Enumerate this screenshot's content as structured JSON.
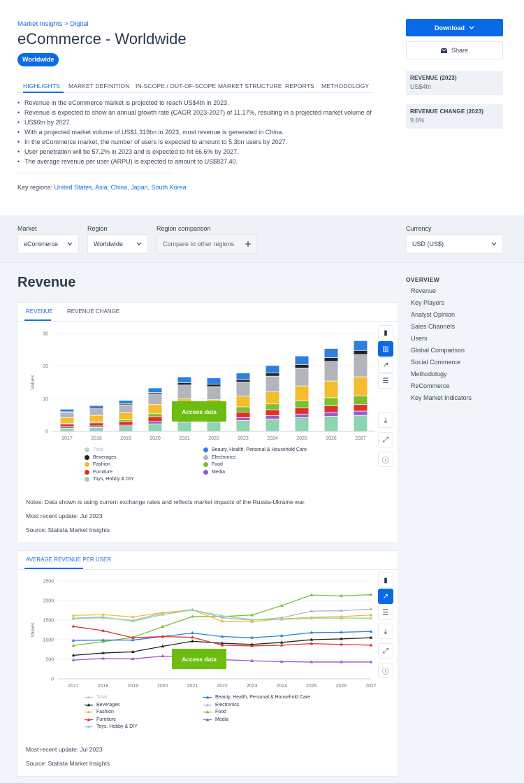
{
  "header": {
    "breadcrumb": "Market Insights > Digital",
    "title": "eCommerce - Worldwide",
    "region_pill": "Worldwide",
    "tabs": [
      "HIGHLIGHTS",
      "MARKET DEFINITION",
      "IN-SCOPE / OUT-OF-SCOPE",
      "MARKET STRUCTURE",
      "REPORTS",
      "METHODOLOGY"
    ],
    "highlights": [
      "Revenue in the eCommerce market is projected to reach US$4tn in 2023.",
      "Revenue is expected to show an annual growth rate (CAGR 2023-2027) of 11.17%, resulting in a projected market volume of",
      "US$6tn by 2027.",
      "With a projected market volume of US$1,319bn in 2023, most revenue is generated in China.",
      "In the eCommerce market, the number of users is expected to amount to 5.3bn users by 2027.",
      "User penetration will be 57.2% in 2023 and is expected to hit 66.6% by 2027.",
      "The average revenue per user (ARPU) is expected to amount to US$827.40."
    ],
    "key_regions_label": "Key regions:",
    "key_regions": "United States, Asia, China, Japan, South Korea"
  },
  "sidebar": {
    "download_label": "Download",
    "share_label": "Share",
    "kpis": [
      {
        "label": "REVENUE (2023)",
        "value": "US$4tn"
      },
      {
        "label": "REVENUE CHANGE (2023)",
        "value": "9.6%"
      }
    ]
  },
  "filters": {
    "market_label": "Market",
    "market_value": "eCommerce",
    "region_label": "Region",
    "region_value": "Worldwide",
    "comparison_label": "Region comparison",
    "comparison_value": "Compare to other regions",
    "currency_label": "Currency",
    "currency_value": "USD (US$)"
  },
  "section": {
    "title": "Revenue"
  },
  "overview": {
    "title": "OVERVIEW",
    "items": [
      "Revenue",
      "Key Players",
      "Analyst Opinion",
      "Sales Channels",
      "Users",
      "Global Comparison",
      "Social Commerce",
      "Methodology",
      "ReCommerce",
      "Key Market Indicators"
    ]
  },
  "revenue_card": {
    "tabs": [
      "REVENUE",
      "REVENUE CHANGE"
    ],
    "access_label": "Access data",
    "notes": "Notes: Data shown is using current exchange rates and reflects market impacts of the Russia-Ukraine war.",
    "update": "Most recent update: Jul 2023",
    "source": "Source: Statista Market Insights"
  },
  "arpu_card": {
    "tab": "AVERAGE REVENUE PER USER",
    "access_label": "Access data",
    "update": "Most recent update: Jul 2023",
    "source": "Source: Statista Market Insights"
  },
  "icons": {
    "download_btn": "chevron-down-icon",
    "share_btn": "envelope-icon",
    "toolbar": [
      "bar-chart-icon",
      "stacked-bar-icon",
      "line-chart-icon",
      "table-icon",
      "download-icon",
      "expand-icon",
      "info-icon"
    ]
  },
  "colors": {
    "accent": "#0a6ae6",
    "access": "#6cbd10",
    "series": {
      "Total": "#c8ccd2",
      "Beauty, Health, Personal & Household Care": "#2f7fe0",
      "Beverages": "#222222",
      "Electronics": "#b2b6bc",
      "Fashion": "#f6bc2e",
      "Food": "#7cbf32",
      "Furniture": "#e0302a",
      "Media": "#9b59d0",
      "Toys, Hobby & DIY": "#8fd4b0"
    }
  },
  "chart_data": [
    {
      "type": "bar",
      "stacked": true,
      "ylabel": "Values",
      "ylim": [
        0,
        30
      ],
      "yticks": [
        0,
        10,
        20,
        30
      ],
      "categories": [
        "2017",
        "2018",
        "2019",
        "2020",
        "2021",
        "2022",
        "2023",
        "2024",
        "2025",
        "2026",
        "2027"
      ],
      "legend_placement": "bottom",
      "series": [
        {
          "name": "Toys, Hobby & DIY",
          "values": [
            1.0,
            1.2,
            1.4,
            2.3,
            2.8,
            2.8,
            3.3,
            3.8,
            4.2,
            4.6,
            4.9
          ]
        },
        {
          "name": "Media",
          "values": [
            0.4,
            0.5,
            0.5,
            0.7,
            0.8,
            0.8,
            0.9,
            1.0,
            1.1,
            1.2,
            1.3
          ]
        },
        {
          "name": "Furniture",
          "values": [
            0.8,
            0.9,
            1.0,
            1.5,
            1.6,
            1.6,
            1.7,
            1.8,
            1.9,
            2.0,
            2.0
          ]
        },
        {
          "name": "Food",
          "values": [
            0.3,
            0.4,
            0.6,
            0.9,
            1.4,
            1.5,
            1.6,
            1.8,
            2.2,
            2.5,
            2.7
          ]
        },
        {
          "name": "Fashion",
          "values": [
            1.7,
            1.9,
            2.2,
            2.8,
            3.4,
            3.0,
            3.3,
            3.7,
            4.5,
            5.1,
            5.8
          ]
        },
        {
          "name": "Electronics",
          "values": [
            1.6,
            1.8,
            2.4,
            3.3,
            4.2,
            4.0,
            4.3,
            4.8,
            5.5,
            6.0,
            6.8
          ]
        },
        {
          "name": "Beverages",
          "values": [
            0.2,
            0.3,
            0.3,
            0.4,
            0.7,
            0.8,
            0.8,
            1.0,
            1.1,
            1.2,
            1.3
          ]
        },
        {
          "name": "Beauty, Health, Personal & Household Care",
          "values": [
            0.8,
            0.9,
            1.1,
            1.4,
            1.8,
            1.9,
            2.0,
            2.3,
            2.6,
            2.8,
            3.0
          ]
        }
      ]
    },
    {
      "type": "line",
      "ylabel": "Values",
      "ylim": [
        0,
        2500
      ],
      "yticks": [
        0,
        500,
        1000,
        1500,
        2000,
        2500
      ],
      "x": [
        "2017",
        "2018",
        "2019",
        "2020",
        "2021",
        "2022",
        "2023",
        "2024",
        "2025",
        "2026",
        "2027"
      ],
      "legend_placement": "bottom",
      "series": [
        {
          "name": "Food",
          "values": [
            850,
            950,
            1060,
            1330,
            1590,
            1590,
            1630,
            1870,
            2140,
            2120,
            2150
          ]
        },
        {
          "name": "Electronics",
          "values": [
            1540,
            1560,
            1490,
            1680,
            1770,
            1560,
            1500,
            1560,
            1730,
            1740,
            1780
          ]
        },
        {
          "name": "Fashion",
          "values": [
            1620,
            1640,
            1580,
            1690,
            1760,
            1470,
            1460,
            1530,
            1570,
            1590,
            1630
          ]
        },
        {
          "name": "Toys, Hobby & DIY",
          "values": [
            1550,
            1580,
            1470,
            1640,
            1760,
            1610,
            1510,
            1520,
            1550,
            1550,
            1550
          ]
        },
        {
          "name": "Beauty, Health, Personal & Household Care",
          "values": [
            980,
            990,
            990,
            1080,
            1170,
            1080,
            1050,
            1100,
            1180,
            1190,
            1210
          ]
        },
        {
          "name": "Beverages",
          "values": [
            600,
            660,
            690,
            830,
            960,
            910,
            880,
            930,
            1000,
            1020,
            1050
          ]
        },
        {
          "name": "Furniture",
          "values": [
            1340,
            1230,
            1050,
            1080,
            1060,
            860,
            840,
            860,
            900,
            880,
            860
          ]
        },
        {
          "name": "Media",
          "values": [
            480,
            520,
            510,
            580,
            560,
            490,
            460,
            440,
            430,
            430,
            430
          ]
        }
      ]
    }
  ]
}
